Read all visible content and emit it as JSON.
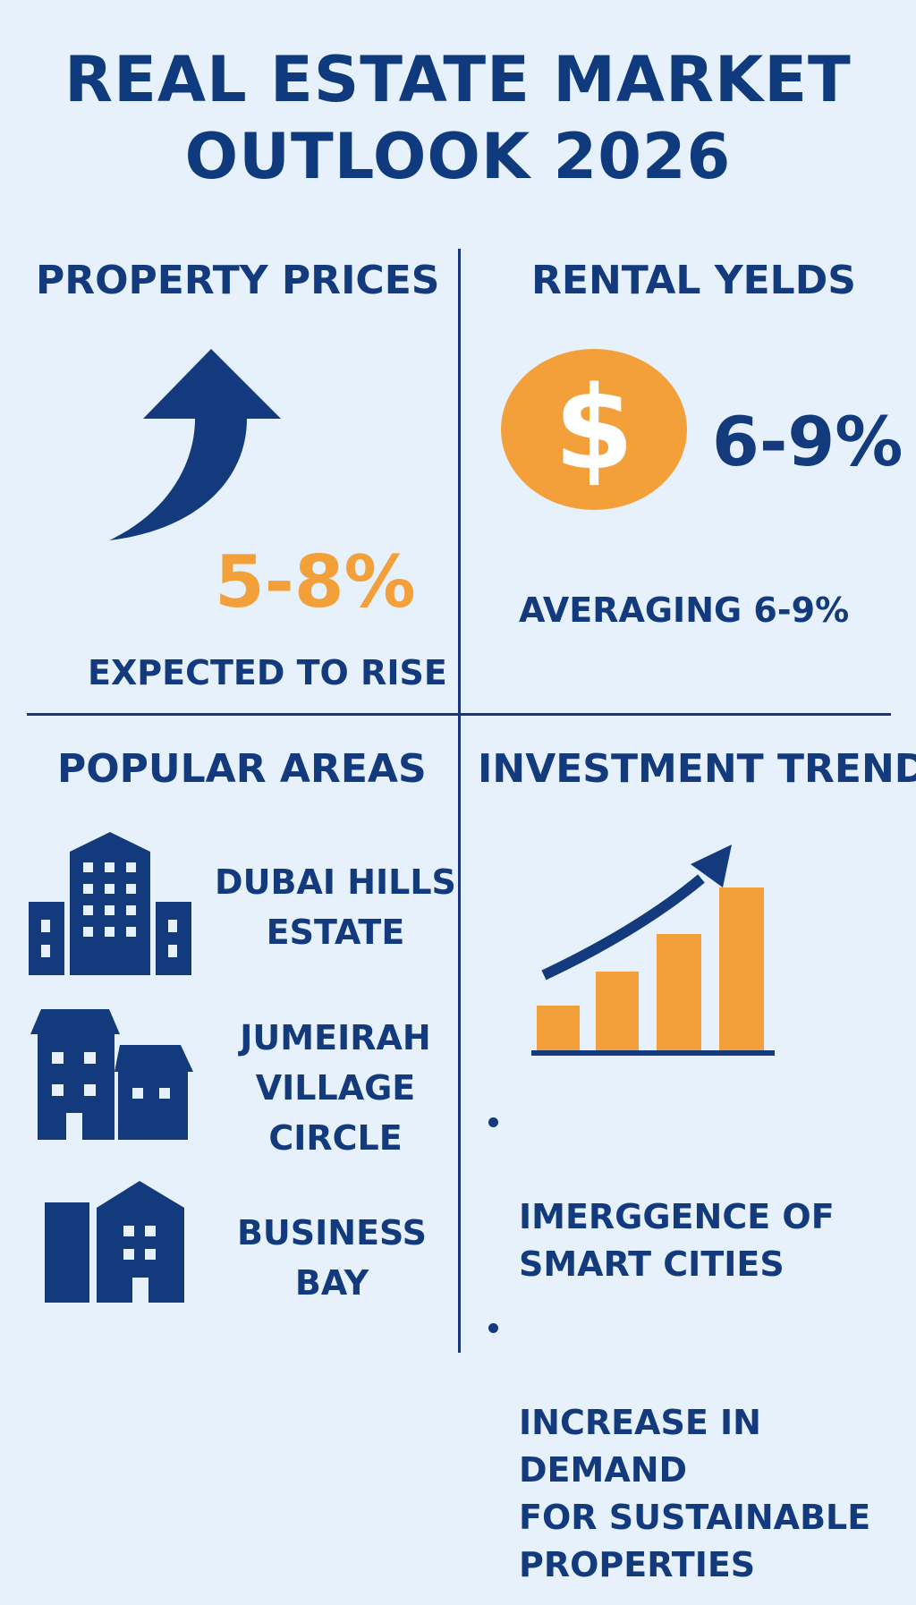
{
  "title": {
    "line1": "REAL ESTATE MARKET",
    "line2": "OUTLOOK 2026"
  },
  "colors": {
    "background": "#e6f1fb",
    "navy": "#123a7c",
    "orange": "#f3a03a"
  },
  "property_prices": {
    "heading": "PROPERTY PRICES",
    "icon": "arrow-up-curved-icon",
    "value": "5-8%",
    "caption": "EXPECTED TO RISE"
  },
  "rental_yields": {
    "heading": "RENTAL YELDS",
    "icon": "dollar-coin-icon",
    "icon_glyph": "$",
    "value": "6-9%",
    "caption": "AVERAGING 6-9%"
  },
  "popular_areas": {
    "heading": "POPULAR AREAS",
    "items": [
      {
        "icon": "office-tower-icon",
        "line1": "DUBAI HILLS",
        "line2": "ESTATE",
        "line3": ""
      },
      {
        "icon": "townhouse-icon",
        "line1": "JUMEIRAH",
        "line2": "VILLAGE",
        "line3": "CIRCLE"
      },
      {
        "icon": "buildings-icon",
        "line1": "BUSINESS",
        "line2": "BAY",
        "line3": ""
      }
    ]
  },
  "investment_trends": {
    "heading": "INVESTMENT TRENDS",
    "icon": "growth-bar-chart-icon",
    "bullets": [
      "IMERGGENCE OF\nSMART CITIES",
      "INCREASE IN DEMAND\nFOR SUSTAINABLE\nPROPERTIES"
    ]
  }
}
